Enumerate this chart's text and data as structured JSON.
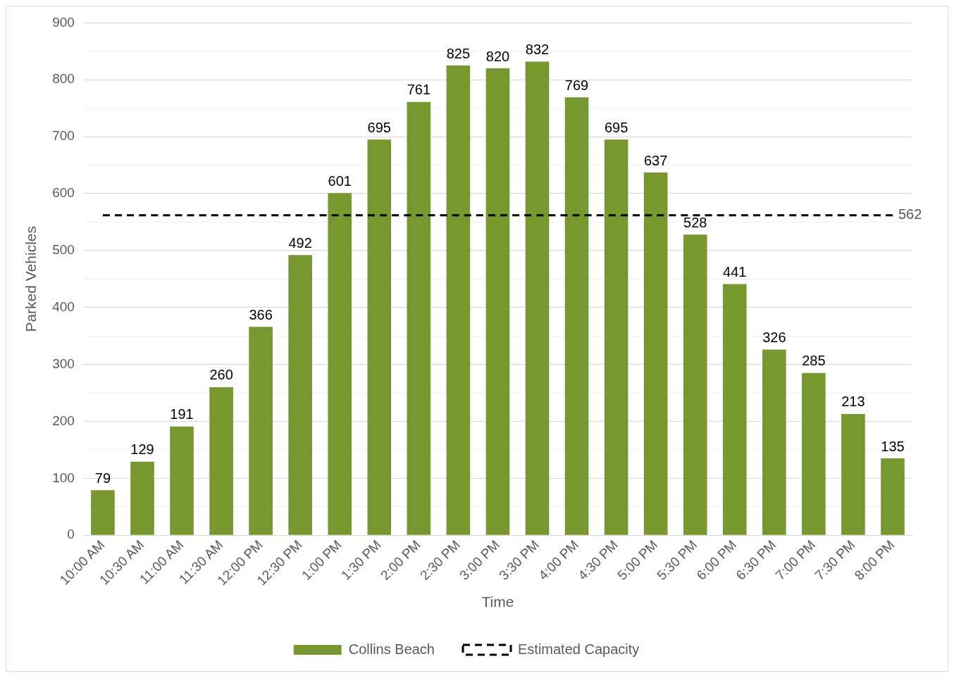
{
  "chart_data": {
    "type": "bar",
    "xlabel": "Time",
    "ylabel": "Parked Vehicles",
    "categories": [
      "10:00 AM",
      "10:30 AM",
      "11:00 AM",
      "11:30 AM",
      "12:00 PM",
      "12:30 PM",
      "1:00 PM",
      "1:30 PM",
      "2:00 PM",
      "2:30 PM",
      "3:00 PM",
      "3:30 PM",
      "4:00 PM",
      "4:30 PM",
      "5:00 PM",
      "5:30 PM",
      "6:00 PM",
      "6:30 PM",
      "7:00 PM",
      "7:30 PM",
      "8:00 PM"
    ],
    "series": [
      {
        "name": "Collins Beach",
        "color": "#77982f",
        "values": [
          79,
          129,
          191,
          260,
          366,
          492,
          601,
          695,
          761,
          825,
          820,
          832,
          769,
          695,
          637,
          528,
          441,
          326,
          285,
          213,
          135
        ],
        "value_labels": [
          "79",
          "129",
          "191",
          "260",
          "366",
          "492",
          "601",
          "695",
          "761",
          "825",
          "820",
          "832",
          "769",
          "695",
          "637",
          "528",
          "441",
          "326",
          "285",
          "213",
          "135"
        ]
      },
      {
        "name": "Estimated Capacity",
        "type": "line",
        "color": "#000000",
        "line_style": "dashed",
        "marker": "none",
        "values": [
          562,
          562,
          562,
          562,
          562,
          562,
          562,
          562,
          562,
          562,
          562,
          562,
          562,
          562,
          562,
          562,
          562,
          562,
          562,
          562,
          562
        ],
        "value_labels": [
          null,
          null,
          null,
          null,
          null,
          null,
          null,
          null,
          null,
          null,
          null,
          null,
          null,
          null,
          null,
          null,
          null,
          null,
          null,
          null,
          "562"
        ]
      }
    ],
    "ylim": [
      0,
      900
    ],
    "yticks": [
      0,
      {
        "value": 50,
        "label": null
      },
      100,
      {
        "value": 150,
        "label": null
      },
      200,
      {
        "value": 250,
        "label": null
      },
      300,
      {
        "value": 350,
        "label": null
      },
      400,
      {
        "value": 450,
        "label": null
      },
      500,
      {
        "value": 550,
        "label": null
      },
      600,
      {
        "value": 650,
        "label": null
      },
      700,
      {
        "value": 750,
        "label": null
      },
      800,
      {
        "value": 850,
        "label": null
      },
      900
    ],
    "grid": "y",
    "legend": "bottom"
  }
}
